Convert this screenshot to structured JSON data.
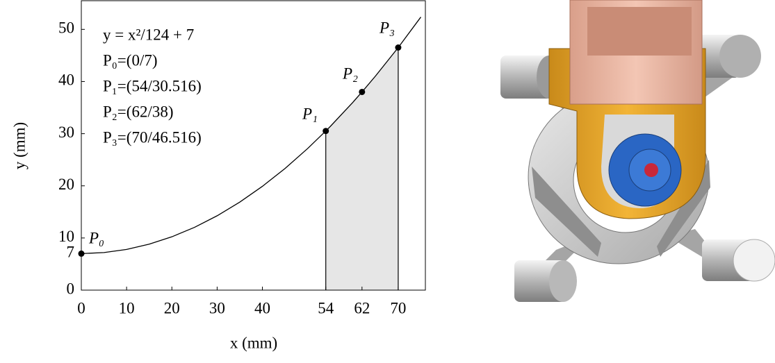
{
  "chart_data": {
    "type": "line",
    "x_label": "x (mm)",
    "y_label": "y (mm)",
    "xlim": [
      0,
      76
    ],
    "ylim": [
      0,
      55.5
    ],
    "xticks": [
      0,
      10,
      20,
      30,
      40,
      54,
      62,
      70
    ],
    "yticks": [
      0,
      7,
      10,
      20,
      30,
      40,
      50
    ],
    "x": [
      0,
      5,
      10,
      15,
      20,
      25,
      30,
      35,
      40,
      45,
      50,
      54,
      55,
      60,
      62,
      65,
      70,
      75
    ],
    "series": [
      {
        "color": "#000000",
        "values": [
          7,
          7.202,
          7.806,
          8.815,
          10.226,
          12.04,
          14.258,
          16.879,
          19.903,
          23.331,
          27.161,
          30.516,
          31.395,
          36.032,
          38,
          41.073,
          46.516,
          52.363
        ]
      }
    ],
    "points": [
      {
        "label": "P₀",
        "x": 0,
        "y": 7
      },
      {
        "label": "P₁",
        "x": 54,
        "y": 30.516
      },
      {
        "label": "P₂",
        "x": 62,
        "y": 38
      },
      {
        "label": "P₃",
        "x": 70,
        "y": 46.516
      }
    ],
    "shaded_range": [
      54,
      70
    ],
    "annotations": [
      "y = x²/124 + 7",
      "P₀=(0/7)",
      "P₁=(54/30.516)",
      "P₂=(62/38)",
      "P₃=(70/46.516)"
    ]
  }
}
